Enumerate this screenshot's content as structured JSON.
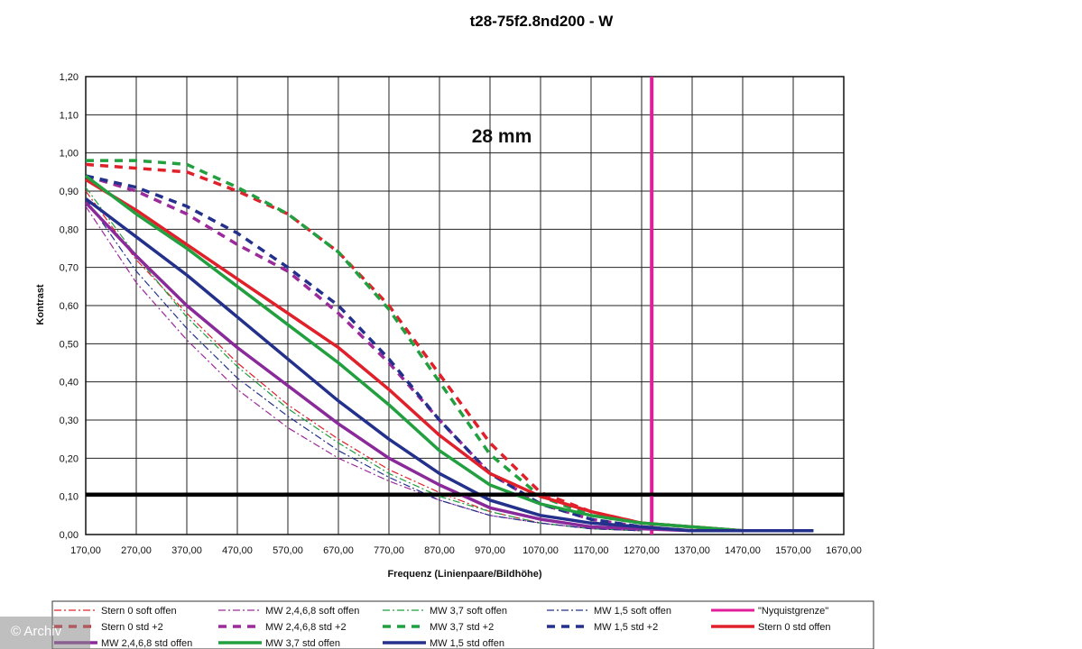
{
  "chart_data": {
    "type": "line",
    "title": "t28-75f2.8nd200 - W",
    "annotation": "28 mm",
    "xlabel": "Frequenz (Linienpaare/Bildhöhe)",
    "ylabel": "Kontrast",
    "xlim": [
      170,
      1670
    ],
    "ylim": [
      0,
      1.2
    ],
    "xticks": [
      "170,00",
      "270,00",
      "370,00",
      "470,00",
      "570,00",
      "670,00",
      "770,00",
      "870,00",
      "970,00",
      "1070,00",
      "1170,00",
      "1270,00",
      "1370,00",
      "1470,00",
      "1570,00",
      "1670,00"
    ],
    "yticks": [
      "0,00",
      "0,10",
      "0,20",
      "0,30",
      "0,40",
      "0,50",
      "0,60",
      "0,70",
      "0,80",
      "0,90",
      "1,00",
      "1,10",
      "1,20"
    ],
    "grid": true,
    "legend_position": "bottom",
    "reference_lines": [
      {
        "orientation": "horizontal",
        "y": 0.105,
        "color": "#000000"
      }
    ],
    "series": [
      {
        "name": "Stern 0 soft offen",
        "color": "#e0202a",
        "style": "dashdot",
        "width": 1.2,
        "x": [
          170,
          270,
          370,
          470,
          570,
          670,
          770,
          870,
          970,
          1070,
          1170,
          1270
        ],
        "y": [
          0.9,
          0.72,
          0.58,
          0.45,
          0.34,
          0.25,
          0.17,
          0.11,
          0.06,
          0.03,
          0.015,
          0.01
        ]
      },
      {
        "name": "MW 2,4,6,8 soft offen",
        "color": "#9b2a9b",
        "style": "dashdot",
        "width": 1.2,
        "x": [
          170,
          270,
          370,
          470,
          570,
          670,
          770,
          870,
          970,
          1070,
          1170,
          1270
        ],
        "y": [
          0.86,
          0.66,
          0.51,
          0.38,
          0.28,
          0.2,
          0.14,
          0.09,
          0.05,
          0.03,
          0.015,
          0.01
        ]
      },
      {
        "name": "MW 3,7 soft offen",
        "color": "#22a040",
        "style": "dashdot",
        "width": 1.2,
        "x": [
          170,
          270,
          370,
          470,
          570,
          670,
          770,
          870,
          970,
          1070,
          1170,
          1270
        ],
        "y": [
          0.91,
          0.73,
          0.57,
          0.44,
          0.33,
          0.24,
          0.16,
          0.1,
          0.06,
          0.03,
          0.015,
          0.01
        ]
      },
      {
        "name": "MW 1,5 soft offen",
        "color": "#23318c",
        "style": "dashdot",
        "width": 1.2,
        "x": [
          170,
          270,
          370,
          470,
          570,
          670,
          770,
          870,
          970,
          1070,
          1170,
          1270
        ],
        "y": [
          0.88,
          0.69,
          0.54,
          0.41,
          0.31,
          0.22,
          0.15,
          0.09,
          0.05,
          0.03,
          0.015,
          0.01
        ]
      },
      {
        "name": "\"Nyquistgrenze\"",
        "color": "#e0209a",
        "style": "vertical",
        "width": 4,
        "x": [
          1290,
          1290
        ],
        "y": [
          0,
          1.2
        ]
      },
      {
        "name": "Stern 0 std +2",
        "color": "#e0202a",
        "style": "dash",
        "width": 3.5,
        "x": [
          170,
          270,
          370,
          470,
          570,
          670,
          770,
          870,
          970,
          1070,
          1170,
          1270,
          1370,
          1470,
          1610
        ],
        "y": [
          0.97,
          0.96,
          0.95,
          0.9,
          0.84,
          0.74,
          0.6,
          0.42,
          0.24,
          0.11,
          0.06,
          0.03,
          0.02,
          0.01,
          0.01
        ]
      },
      {
        "name": "MW 2,4,6,8 std +2",
        "color": "#9b2a9b",
        "style": "dash",
        "width": 3.5,
        "x": [
          170,
          270,
          370,
          470,
          570,
          670,
          770,
          870,
          970,
          1070,
          1170,
          1270,
          1370,
          1470,
          1610
        ],
        "y": [
          0.94,
          0.9,
          0.84,
          0.76,
          0.69,
          0.58,
          0.45,
          0.3,
          0.16,
          0.08,
          0.04,
          0.02,
          0.01,
          0.01,
          0.01
        ]
      },
      {
        "name": "MW 3,7 std +2",
        "color": "#22a040",
        "style": "dash",
        "width": 3.5,
        "x": [
          170,
          270,
          370,
          470,
          570,
          670,
          770,
          870,
          970,
          1070,
          1170,
          1270,
          1370,
          1470,
          1610
        ],
        "y": [
          0.98,
          0.98,
          0.97,
          0.91,
          0.84,
          0.74,
          0.59,
          0.4,
          0.21,
          0.1,
          0.05,
          0.03,
          0.02,
          0.01,
          0.01
        ]
      },
      {
        "name": "MW 1,5 std +2",
        "color": "#23318c",
        "style": "dash",
        "width": 3.5,
        "x": [
          170,
          270,
          370,
          470,
          570,
          670,
          770,
          870,
          970,
          1070,
          1170,
          1270,
          1370,
          1470,
          1610
        ],
        "y": [
          0.94,
          0.91,
          0.86,
          0.79,
          0.7,
          0.6,
          0.46,
          0.3,
          0.16,
          0.08,
          0.04,
          0.02,
          0.01,
          0.01,
          0.01
        ]
      },
      {
        "name": "Stern 0 std offen",
        "color": "#e0202a",
        "style": "solid",
        "width": 3.5,
        "x": [
          170,
          270,
          370,
          470,
          570,
          670,
          770,
          870,
          970,
          1070,
          1170,
          1270,
          1370,
          1470,
          1610
        ],
        "y": [
          0.93,
          0.85,
          0.76,
          0.67,
          0.58,
          0.49,
          0.38,
          0.26,
          0.16,
          0.1,
          0.06,
          0.03,
          0.02,
          0.01,
          0.01
        ]
      },
      {
        "name": "MW 2,4,6,8 std offen",
        "color": "#8a2a9a",
        "style": "solid",
        "width": 3.5,
        "x": [
          170,
          270,
          370,
          470,
          570,
          670,
          770,
          870,
          970,
          1070,
          1170,
          1270,
          1370,
          1470,
          1610
        ],
        "y": [
          0.87,
          0.73,
          0.6,
          0.49,
          0.39,
          0.29,
          0.2,
          0.13,
          0.07,
          0.04,
          0.02,
          0.015,
          0.01,
          0.01,
          0.01
        ]
      },
      {
        "name": "MW 3,7 std offen",
        "color": "#22a040",
        "style": "solid",
        "width": 3.5,
        "x": [
          170,
          270,
          370,
          470,
          570,
          670,
          770,
          870,
          970,
          1070,
          1170,
          1270,
          1370,
          1470,
          1610
        ],
        "y": [
          0.94,
          0.84,
          0.75,
          0.65,
          0.55,
          0.45,
          0.34,
          0.22,
          0.13,
          0.08,
          0.05,
          0.03,
          0.02,
          0.01,
          0.01
        ]
      },
      {
        "name": "MW 1,5 std offen",
        "color": "#23318c",
        "style": "solid",
        "width": 3.5,
        "x": [
          170,
          270,
          370,
          470,
          570,
          670,
          770,
          870,
          970,
          1070,
          1170,
          1270,
          1370,
          1470,
          1610
        ],
        "y": [
          0.88,
          0.78,
          0.68,
          0.57,
          0.46,
          0.35,
          0.25,
          0.16,
          0.09,
          0.05,
          0.03,
          0.02,
          0.01,
          0.01,
          0.01
        ]
      }
    ]
  },
  "watermark": "© Archiv"
}
